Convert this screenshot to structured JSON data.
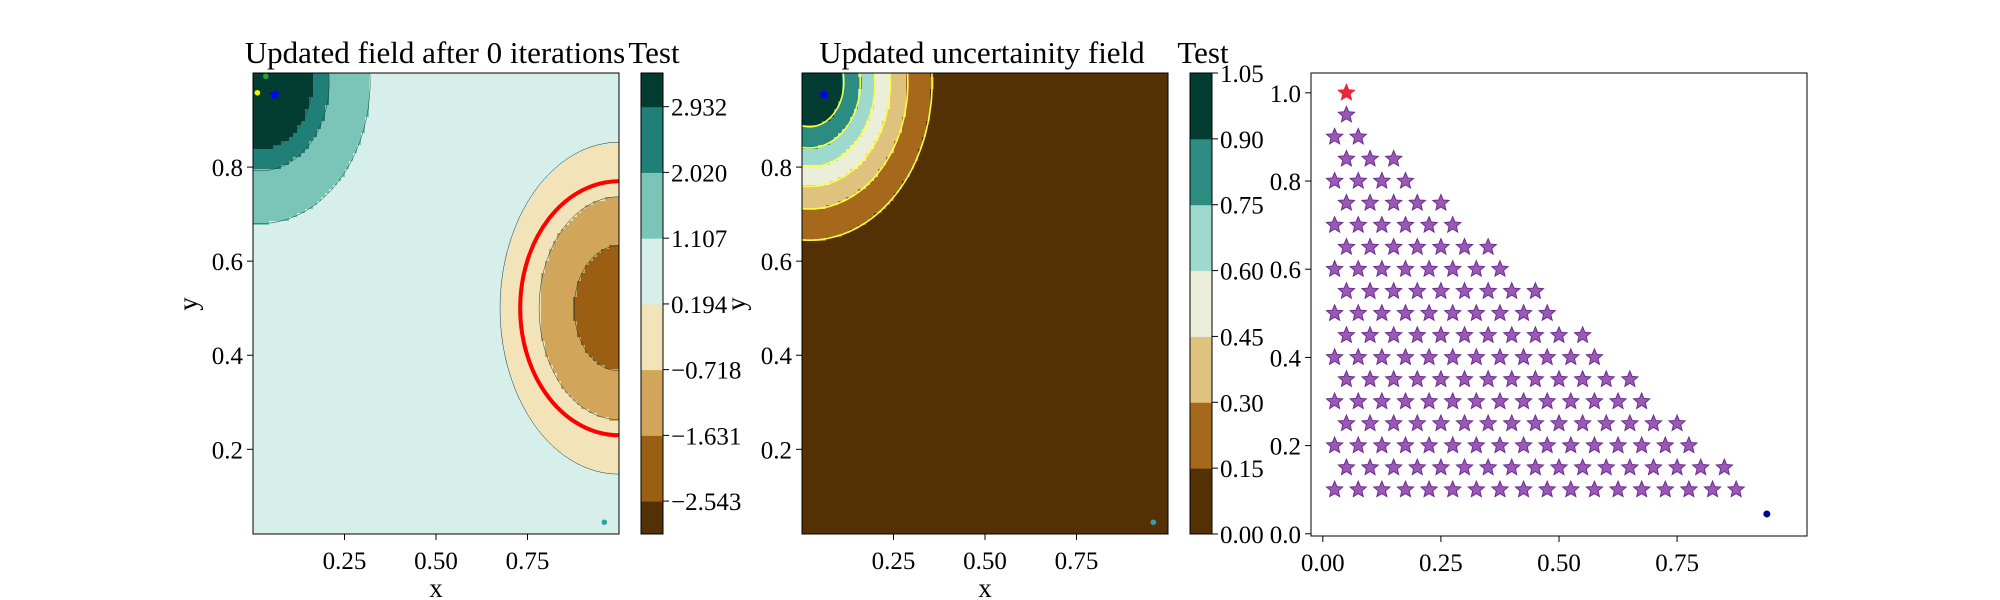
{
  "colors": {
    "brbg": [
      "#543005",
      "#8c510a",
      "#bf812d",
      "#dfc27d",
      "#f6e8c3",
      "#e0f3ef",
      "#9dd9cd",
      "#4ca89b",
      "#0e7068",
      "#033c31"
    ],
    "boundary": "#ff0000",
    "uncert_line": "#ffff40",
    "stars": "#9b59b6",
    "star_edge": "#6c2d91",
    "red_star": "#e8253c",
    "blue": "#0000ff"
  },
  "chart_data": [
    {
      "type": "contour",
      "title": "Updated field after 0 iterations",
      "xlabel": "x",
      "ylabel": "y",
      "xlim": [
        0.0,
        1.0
      ],
      "ylim": [
        0.02,
        1.0
      ],
      "xticks": [
        "0.25",
        "0.50",
        "0.75"
      ],
      "xtick_values": [
        0.25,
        0.5,
        0.75
      ],
      "yticks": [
        "0.2",
        "0.4",
        "0.6",
        "0.8"
      ],
      "ytick_values": [
        0.2,
        0.4,
        0.6,
        0.8
      ],
      "field_model": {
        "background": 1.0,
        "bump": {
          "cx": 0.02,
          "cy": 0.98,
          "amp": 4.4,
          "sigma": 0.11
        },
        "dip": {
          "cx": 1.0,
          "cy": 0.5,
          "amp": -3.2,
          "rx": 0.35,
          "ry": 0.38
        }
      },
      "levels": [
        -3.0,
        -2.543,
        -1.631,
        -0.718,
        0.194,
        1.107,
        2.02,
        2.932,
        3.4
      ],
      "boundary": {
        "cx": 1.0,
        "cy": 0.5,
        "rx": 0.27,
        "ry": 0.27
      },
      "markers": [
        {
          "x": 0.06,
          "y": 0.954,
          "color": "#0000ff",
          "shape": "star"
        },
        {
          "x": 0.012,
          "y": 0.958,
          "color": "#f4f400",
          "shape": "dot"
        },
        {
          "x": 0.035,
          "y": 0.993,
          "color": "#2ca02c",
          "shape": "dot"
        },
        {
          "x": 0.96,
          "y": 0.045,
          "color": "#35a0a0",
          "shape": "dot"
        }
      ],
      "colorbar": {
        "title": "Test",
        "ticks": [
          "2.932",
          "2.020",
          "1.107",
          "0.194",
          "−0.718",
          "−1.631",
          "−2.543"
        ],
        "values": [
          2.932,
          2.02,
          1.107,
          0.194,
          -0.718,
          -1.631,
          -2.543
        ],
        "range": [
          -3.0,
          3.4
        ]
      }
    },
    {
      "type": "contour",
      "title": "Updated uncertainity field",
      "xlabel": "x",
      "ylabel": "y",
      "xlim": [
        0.0,
        1.0
      ],
      "ylim": [
        0.02,
        1.0
      ],
      "xticks": [
        "0.25",
        "0.50",
        "0.75"
      ],
      "xtick_values": [
        0.25,
        0.5,
        0.75
      ],
      "yticks": [
        "0.2",
        "0.4",
        "0.6",
        "0.8"
      ],
      "ytick_values": [
        0.2,
        0.4,
        0.6,
        0.8
      ],
      "field_model": {
        "peak": {
          "cx": 0.02,
          "cy": 0.98,
          "max": 1.05,
          "sigma": 0.17
        }
      },
      "levels": [
        0.0,
        0.15,
        0.3,
        0.45,
        0.6,
        0.75,
        0.9,
        1.05
      ],
      "markers": [
        {
          "x": 0.06,
          "y": 0.954,
          "color": "#0000ff",
          "shape": "star"
        },
        {
          "x": 0.96,
          "y": 0.045,
          "color": "#35a0a0",
          "shape": "dot"
        }
      ],
      "colorbar": {
        "title": "Test",
        "ticks": [
          "1.05",
          "0.90",
          "0.75",
          "0.60",
          "0.45",
          "0.30",
          "0.15",
          "0.00"
        ],
        "values": [
          1.05,
          0.9,
          0.75,
          0.6,
          0.45,
          0.3,
          0.15,
          0.0
        ],
        "range": [
          0.0,
          1.05
        ]
      }
    },
    {
      "type": "scatter",
      "title": "",
      "xlim": [
        -0.025,
        1.025
      ],
      "ylim": [
        -0.005,
        1.045
      ],
      "xticks": [
        "0.00",
        "0.25",
        "0.50",
        "0.75"
      ],
      "xtick_values": [
        0.0,
        0.25,
        0.5,
        0.75
      ],
      "yticks": [
        "0.0",
        "0.2",
        "0.4",
        "0.6",
        "0.8",
        "1.0"
      ],
      "ytick_values": [
        0.0,
        0.2,
        0.4,
        0.6,
        0.8,
        1.0
      ],
      "grid": {
        "rule": "x + y <= 1.02",
        "spacing": 0.05,
        "x_start": 0.025,
        "y_start": 0.1
      },
      "highlight": [
        {
          "x": 0.05,
          "y": 1.0,
          "color": "#e8253c",
          "shape": "star"
        }
      ],
      "extra_points": [
        {
          "x": 0.94,
          "y": 0.045,
          "color": "#00008b",
          "shape": "dot"
        }
      ]
    }
  ]
}
